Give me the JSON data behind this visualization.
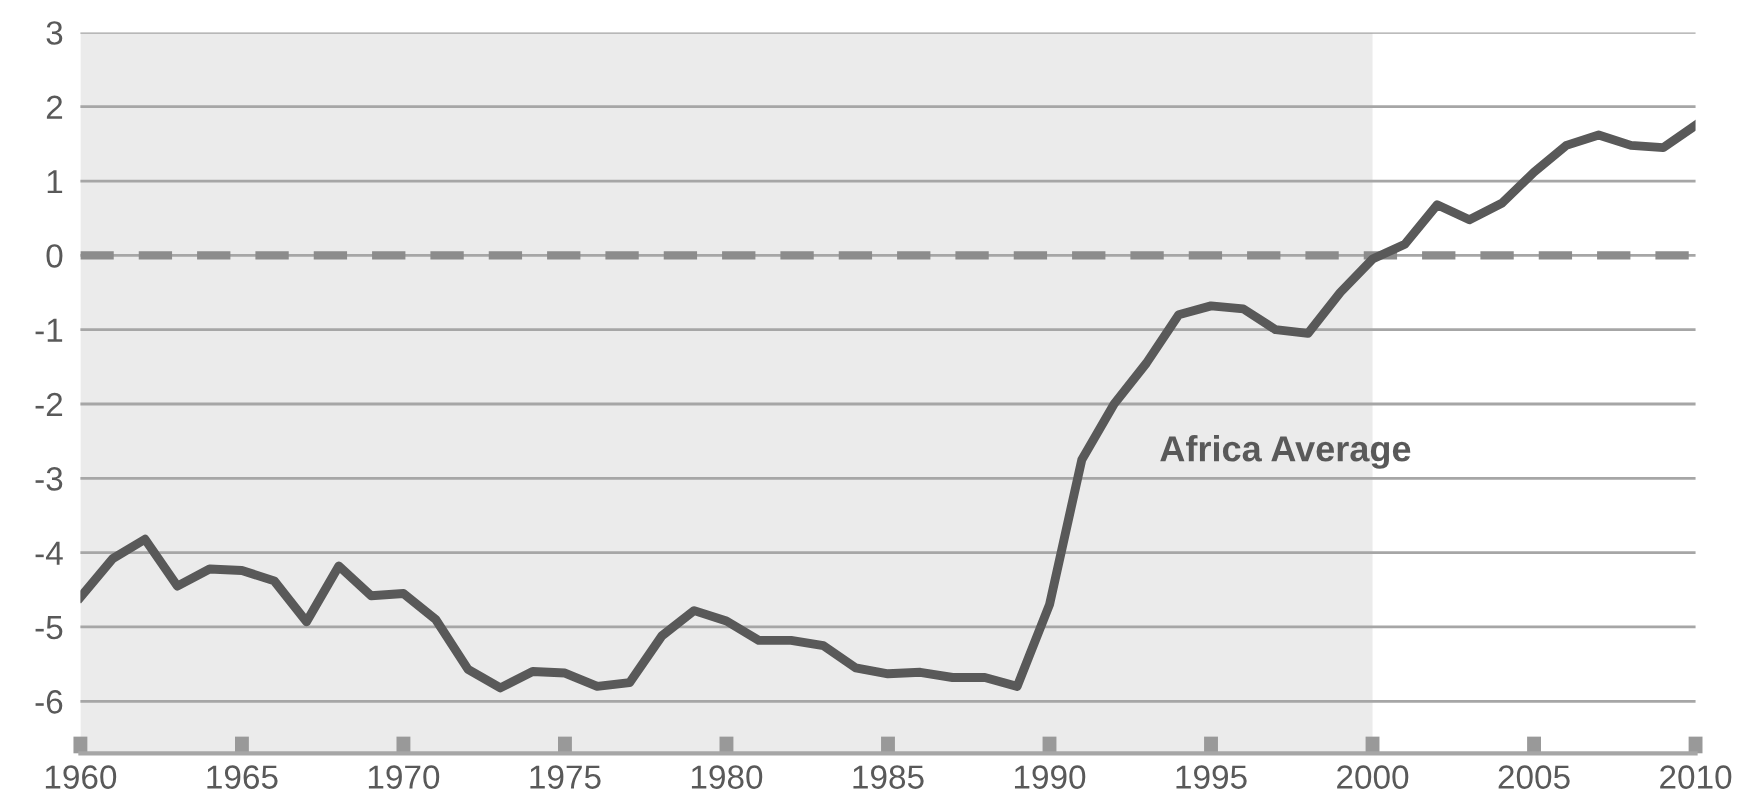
{
  "chart_data": {
    "type": "line",
    "x": [
      1960,
      1961,
      1962,
      1963,
      1964,
      1965,
      1966,
      1967,
      1968,
      1969,
      1970,
      1971,
      1972,
      1973,
      1974,
      1975,
      1976,
      1977,
      1978,
      1979,
      1980,
      1981,
      1982,
      1983,
      1984,
      1985,
      1986,
      1987,
      1988,
      1989,
      1990,
      1991,
      1992,
      1993,
      1994,
      1995,
      1996,
      1997,
      1998,
      1999,
      2000,
      2001,
      2002,
      2003,
      2004,
      2005,
      2006,
      2007,
      2008,
      2009,
      2010
    ],
    "series": [
      {
        "color": "#595959",
        "values": [
          -4.6,
          -4.08,
          -3.82,
          -4.45,
          -4.22,
          -4.24,
          -4.38,
          -4.93,
          -4.18,
          -4.58,
          -4.55,
          -4.9,
          -5.57,
          -5.82,
          -5.6,
          -5.62,
          -5.8,
          -5.75,
          -5.12,
          -4.78,
          -4.92,
          -5.18,
          -5.18,
          -5.25,
          -5.55,
          -5.63,
          -5.61,
          -5.68,
          -5.68,
          -5.8,
          -4.7,
          -2.75,
          -2.0,
          -1.45,
          -0.8,
          -0.68,
          -0.72,
          -1.0,
          -1.05,
          -0.5,
          -0.05,
          0.15,
          0.68,
          0.48,
          0.7,
          1.12,
          1.48,
          1.62,
          1.48,
          1.45,
          1.75
        ]
      }
    ],
    "annotations": [
      "Africa Average"
    ],
    "xlim": [
      1960,
      2010
    ],
    "xticks": [
      1960,
      1965,
      1970,
      1975,
      1980,
      1985,
      1990,
      1995,
      2000,
      2005,
      2010
    ],
    "ylim": [
      -6.7,
      3
    ],
    "yticks": [
      -6,
      -5,
      -4,
      -3,
      -2,
      -1,
      0,
      1,
      2,
      3
    ],
    "grid": "y",
    "line_style": "solid",
    "marker": "none",
    "legend": false,
    "ref_lines": [
      {
        "axis": "y",
        "value": 0,
        "label": null,
        "color": "#8c8c8c",
        "line_style": "dashed"
      }
    ],
    "bands": [
      {
        "axis": "x",
        "from": 1960,
        "to": 2000,
        "label": null,
        "color": "#ebebeb"
      }
    ]
  }
}
